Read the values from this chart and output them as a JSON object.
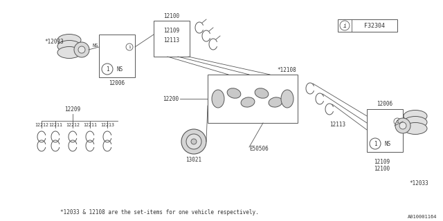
{
  "bg_color": "#ffffff",
  "line_color": "#555555",
  "text_color": "#333333",
  "footnote": "*12033 & 12108 are the set-items for one vehicle respectively.",
  "diagram_id": "A010001164",
  "part_label": "F32304"
}
